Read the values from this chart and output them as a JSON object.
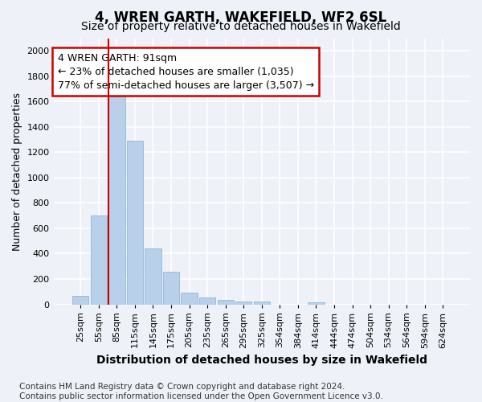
{
  "title": "4, WREN GARTH, WAKEFIELD, WF2 6SL",
  "subtitle": "Size of property relative to detached houses in Wakefield",
  "xlabel": "Distribution of detached houses by size in Wakefield",
  "ylabel": "Number of detached properties",
  "categories": [
    "25sqm",
    "55sqm",
    "85sqm",
    "115sqm",
    "145sqm",
    "175sqm",
    "205sqm",
    "235sqm",
    "265sqm",
    "295sqm",
    "325sqm",
    "354sqm",
    "384sqm",
    "414sqm",
    "444sqm",
    "474sqm",
    "504sqm",
    "534sqm",
    "564sqm",
    "594sqm",
    "624sqm"
  ],
  "values": [
    65,
    700,
    1640,
    1290,
    440,
    255,
    90,
    55,
    35,
    22,
    25,
    0,
    0,
    18,
    0,
    0,
    0,
    0,
    0,
    0,
    0
  ],
  "bar_color": "#b8d0ea",
  "bar_edge_color": "#90b8d8",
  "vline_color": "#cc0000",
  "vline_bar_index": 2,
  "annotation_text": "4 WREN GARTH: 91sqm\n← 23% of detached houses are smaller (1,035)\n77% of semi-detached houses are larger (3,507) →",
  "annotation_box_edgecolor": "#cc0000",
  "annotation_bg_color": "#ffffff",
  "ylim": [
    0,
    2100
  ],
  "yticks": [
    0,
    200,
    400,
    600,
    800,
    1000,
    1200,
    1400,
    1600,
    1800,
    2000
  ],
  "footnote": "Contains HM Land Registry data © Crown copyright and database right 2024.\nContains public sector information licensed under the Open Government Licence v3.0.",
  "bg_color": "#eef2f8",
  "grid_color": "#ffffff",
  "title_fontsize": 12,
  "subtitle_fontsize": 10,
  "xlabel_fontsize": 10,
  "ylabel_fontsize": 9,
  "tick_fontsize": 8,
  "annot_fontsize": 9,
  "footnote_fontsize": 7.5
}
